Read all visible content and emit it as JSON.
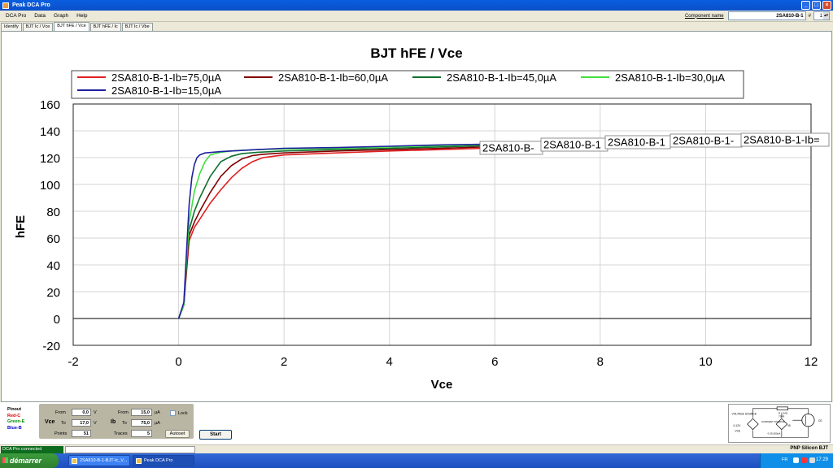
{
  "window": {
    "title": "Peak DCA Pro"
  },
  "menu": [
    "DCA Pro",
    "Data",
    "Graph",
    "Help"
  ],
  "component": {
    "label": "Component name",
    "value": "2SA810-B-1",
    "hash": "#",
    "number": "1"
  },
  "tabs": [
    "Identify",
    "BJT Ic / Vce",
    "BJT hFE / Vce",
    "BJT hFE / Ic",
    "BJT Ic / Vbe"
  ],
  "active_tab": 2,
  "chart_data": {
    "type": "line",
    "title": "BJT hFE / Vce",
    "xlabel": "Vce",
    "ylabel": "hFE",
    "xlim": [
      -2,
      12
    ],
    "ylim": [
      -20,
      160
    ],
    "xticks": [
      "-2",
      "0",
      "2",
      "4",
      "6",
      "8",
      "10",
      "12"
    ],
    "yticks": [
      "-20",
      "0",
      "20",
      "40",
      "60",
      "80",
      "100",
      "120",
      "140",
      "160"
    ],
    "grid": true,
    "legend_position": "top",
    "series": [
      {
        "name": "2SA810-B-1-Ib=75,0µA",
        "color": "#e02020",
        "x": [
          0,
          0.1,
          0.15,
          0.2,
          0.3,
          0.4,
          0.6,
          0.8,
          1.0,
          1.2,
          1.4,
          1.6,
          1.8,
          2.0,
          3.0,
          4.0,
          5.0,
          5.8
        ],
        "y": [
          0,
          10,
          35,
          58,
          68,
          74,
          86,
          96,
          105,
          112,
          117,
          120,
          121,
          122,
          123.5,
          125,
          126,
          127
        ]
      },
      {
        "name": "2SA810-B-1-Ib=60,0µA",
        "color": "#800000",
        "x": [
          0,
          0.1,
          0.15,
          0.2,
          0.3,
          0.4,
          0.6,
          0.8,
          1.0,
          1.2,
          1.4,
          1.6,
          2.0,
          3.0,
          4.0,
          5.0,
          5.8
        ],
        "y": [
          0,
          10,
          38,
          62,
          72,
          80,
          94,
          106,
          114,
          119,
          121.5,
          122.5,
          123.5,
          125,
          126,
          127,
          128
        ]
      },
      {
        "name": "2SA810-B-1-Ib=45,0µA",
        "color": "#107030",
        "x": [
          0,
          0.1,
          0.15,
          0.2,
          0.3,
          0.4,
          0.6,
          0.8,
          1.0,
          1.2,
          1.5,
          2.0,
          3.0,
          4.0,
          5.0,
          5.8
        ],
        "y": [
          0,
          10,
          40,
          66,
          80,
          90,
          106,
          117,
          121,
          123,
          124,
          125,
          126,
          127,
          128,
          129
        ]
      },
      {
        "name": "2SA810-B-1-Ib=30,0µA",
        "color": "#40e040",
        "x": [
          0,
          0.1,
          0.15,
          0.2,
          0.3,
          0.4,
          0.5,
          0.6,
          0.8,
          1.0,
          1.5,
          2.0,
          3.0,
          4.0,
          5.0,
          5.8
        ],
        "y": [
          0,
          10,
          45,
          72,
          95,
          108,
          117,
          122,
          124,
          125,
          126,
          126.5,
          127,
          128,
          129,
          130
        ]
      },
      {
        "name": "2SA810-B-1-Ib=15,0µA",
        "color": "#2020a0",
        "x": [
          0,
          0.1,
          0.15,
          0.2,
          0.25,
          0.3,
          0.35,
          0.4,
          0.5,
          0.8,
          1.0,
          1.5,
          2.0,
          3.0,
          4.0,
          5.0,
          5.8
        ],
        "y": [
          0,
          12,
          50,
          85,
          105,
          115,
          120,
          122,
          123.5,
          124.5,
          125,
          126,
          127,
          127.5,
          128.5,
          129.5,
          130
        ]
      }
    ],
    "end_labels": [
      "2SA810-B-",
      "2SA810-B-1",
      "2SA810-B-1",
      "2SA810-B-1-",
      "2SA810-B-1-Ib="
    ]
  },
  "pinout": {
    "title": "Pinout",
    "red": "Red-C",
    "green": "Green-E",
    "blue": "Blue-B"
  },
  "controls": {
    "vce_label": "Vce",
    "ib_label": "Ib",
    "from_label": "From",
    "to_label": "To",
    "points_label": "Points",
    "traces_label": "Traces",
    "vce_from": "0,0",
    "vce_to": "17,0",
    "vce_unit": "V",
    "ib_from": "15,0",
    "ib_to": "75,0",
    "ib_unit": "µA",
    "points": "51",
    "traces": "5",
    "lock_label": "Lock",
    "autoset_label": "Autoset",
    "start_label": "Start"
  },
  "schematic": {
    "voltage_source": "VOLTAGE SOURCE",
    "vs_range": "0-12V",
    "vce_node": "VCE",
    "load": "R LOAD",
    "load_value": "750R",
    "current_source": "CURRENT SOURCE",
    "cs_range": "0-15,000µA",
    "ib_node": "IB",
    "ce_node": "CE"
  },
  "status": {
    "text": "DCA Pro connected",
    "device_type": "PNP Silicon BJT"
  },
  "taskbar": {
    "start": "démarrer",
    "items": [
      "2SA810-B-1-BJT-Ic_V...",
      "Peak DCA Pro"
    ],
    "lang": "FR",
    "clock": "17:29"
  }
}
